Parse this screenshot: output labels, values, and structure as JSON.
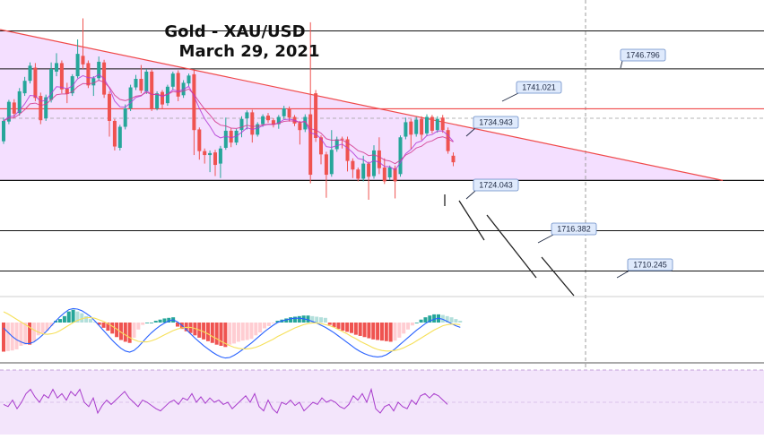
{
  "chart_data": {
    "type": "candlestick",
    "title": [
      "Gold - XAU/USD",
      "March 29, 2021"
    ],
    "instrument": "XAU/USD",
    "levels": [
      {
        "label": "1746.796",
        "value": 1746.796
      },
      {
        "label": "1741.021",
        "value": 1741.021
      },
      {
        "label": "1734.943",
        "value": 1734.943
      },
      {
        "label": "1724.043",
        "value": 1724.043
      },
      {
        "label": "1716.382",
        "value": 1716.382
      },
      {
        "label": "1710.245",
        "value": 1710.245
      }
    ],
    "price_range": [
      1706.5,
      1751.5
    ],
    "candles": [
      [
        1730.0,
        1733.1,
        1729.6,
        1733.6
      ],
      [
        1733.0,
        1736.0,
        1732.6,
        1736.3
      ],
      [
        1735.9,
        1734.2,
        1733.6,
        1736.4
      ],
      [
        1734.3,
        1737.6,
        1733.9,
        1738.1
      ],
      [
        1737.3,
        1739.2,
        1736.9,
        1739.8
      ],
      [
        1739.2,
        1741.5,
        1738.8,
        1742.0
      ],
      [
        1741.2,
        1736.6,
        1736.1,
        1741.9
      ],
      [
        1736.9,
        1733.2,
        1732.6,
        1737.4
      ],
      [
        1733.5,
        1736.7,
        1733.1,
        1737.1
      ],
      [
        1736.3,
        1741.0,
        1735.9,
        1742.0
      ],
      [
        1740.6,
        1741.9,
        1739.9,
        1743.4
      ],
      [
        1741.9,
        1737.9,
        1737.3,
        1742.3
      ],
      [
        1738.0,
        1737.2,
        1735.8,
        1738.9
      ],
      [
        1737.3,
        1739.9,
        1736.9,
        1740.2
      ],
      [
        1739.9,
        1743.3,
        1739.6,
        1745.5
      ],
      [
        1743.0,
        1741.7,
        1741.0,
        1748.7
      ],
      [
        1741.9,
        1738.5,
        1738.1,
        1742.3
      ],
      [
        1738.5,
        1739.6,
        1736.9,
        1739.9
      ],
      [
        1739.6,
        1742.1,
        1739.2,
        1742.9
      ],
      [
        1742.0,
        1737.1,
        1736.6,
        1742.4
      ],
      [
        1737.2,
        1733.1,
        1730.7,
        1737.6
      ],
      [
        1733.1,
        1729.2,
        1728.6,
        1733.4
      ],
      [
        1729.0,
        1732.2,
        1728.6,
        1732.5
      ],
      [
        1732.2,
        1735.0,
        1731.8,
        1735.6
      ],
      [
        1735.0,
        1738.2,
        1734.6,
        1738.6
      ],
      [
        1738.2,
        1739.5,
        1737.8,
        1740.1
      ],
      [
        1739.5,
        1737.7,
        1737.3,
        1741.6
      ],
      [
        1737.6,
        1740.6,
        1737.2,
        1741.0
      ],
      [
        1740.6,
        1735.0,
        1734.6,
        1741.0
      ],
      [
        1735.0,
        1737.3,
        1734.7,
        1737.6
      ],
      [
        1737.5,
        1735.6,
        1735.0,
        1737.8
      ],
      [
        1735.8,
        1738.3,
        1735.4,
        1738.6
      ],
      [
        1738.3,
        1740.3,
        1737.9,
        1740.6
      ],
      [
        1740.4,
        1736.8,
        1736.1,
        1740.8
      ],
      [
        1737.0,
        1738.9,
        1736.6,
        1739.3
      ],
      [
        1738.8,
        1740.0,
        1738.4,
        1740.3
      ],
      [
        1740.2,
        1731.7,
        1727.9,
        1740.8
      ],
      [
        1731.8,
        1728.5,
        1727.2,
        1732.1
      ],
      [
        1728.5,
        1727.9,
        1726.6,
        1728.9
      ],
      [
        1727.9,
        1728.2,
        1725.3,
        1728.6
      ],
      [
        1728.3,
        1726.4,
        1724.7,
        1728.7
      ],
      [
        1726.6,
        1728.9,
        1724.4,
        1729.3
      ],
      [
        1729.0,
        1731.6,
        1728.7,
        1733.6
      ],
      [
        1731.6,
        1729.8,
        1729.1,
        1732.0
      ],
      [
        1729.8,
        1731.6,
        1729.4,
        1731.9
      ],
      [
        1731.7,
        1733.4,
        1730.6,
        1733.8
      ],
      [
        1733.5,
        1734.4,
        1731.8,
        1734.7
      ],
      [
        1734.4,
        1731.0,
        1729.8,
        1734.8
      ],
      [
        1731.0,
        1732.6,
        1730.7,
        1732.9
      ],
      [
        1732.6,
        1733.8,
        1732.2,
        1734.1
      ],
      [
        1733.9,
        1733.2,
        1732.8,
        1734.3
      ],
      [
        1733.2,
        1732.5,
        1732.1,
        1733.5
      ],
      [
        1732.6,
        1733.7,
        1731.9,
        1734.0
      ],
      [
        1733.8,
        1735.0,
        1733.4,
        1735.4
      ],
      [
        1735.0,
        1733.6,
        1733.0,
        1735.3
      ],
      [
        1733.7,
        1732.7,
        1732.3,
        1734.0
      ],
      [
        1732.8,
        1731.7,
        1729.5,
        1733.1
      ],
      [
        1731.8,
        1733.7,
        1731.4,
        1734.1
      ],
      [
        1734.1,
        1724.9,
        1723.6,
        1748.1
      ],
      [
        1737.3,
        1730.5,
        1729.9,
        1737.8
      ],
      [
        1730.6,
        1728.0,
        1726.5,
        1730.9
      ],
      [
        1728.0,
        1724.9,
        1721.4,
        1728.4
      ],
      [
        1725.0,
        1728.7,
        1724.6,
        1731.7
      ],
      [
        1728.8,
        1730.3,
        1728.4,
        1730.7
      ],
      [
        1730.4,
        1730.3,
        1728.9,
        1730.7
      ],
      [
        1730.3,
        1727.0,
        1725.4,
        1730.7
      ],
      [
        1727.0,
        1725.7,
        1724.4,
        1727.4
      ],
      [
        1725.7,
        1724.3,
        1723.9,
        1726.0
      ],
      [
        1724.3,
        1726.6,
        1723.9,
        1727.8
      ],
      [
        1726.6,
        1724.6,
        1721.1,
        1726.9
      ],
      [
        1724.7,
        1728.6,
        1724.3,
        1729.4
      ],
      [
        1728.6,
        1725.9,
        1725.0,
        1730.6
      ],
      [
        1726.0,
        1723.9,
        1723.5,
        1727.4
      ],
      [
        1724.5,
        1726.0,
        1724.1,
        1726.3
      ],
      [
        1725.9,
        1723.9,
        1721.3,
        1726.3
      ],
      [
        1725.0,
        1730.6,
        1724.6,
        1730.9
      ],
      [
        1730.7,
        1732.9,
        1730.3,
        1733.6
      ],
      [
        1733.0,
        1731.0,
        1728.8,
        1733.4
      ],
      [
        1731.1,
        1733.3,
        1730.7,
        1733.7
      ],
      [
        1733.4,
        1731.0,
        1730.2,
        1733.8
      ],
      [
        1731.2,
        1733.7,
        1730.8,
        1734.1
      ],
      [
        1733.7,
        1731.6,
        1731.2,
        1734.0
      ],
      [
        1731.7,
        1733.4,
        1731.3,
        1733.8
      ],
      [
        1733.6,
        1731.7,
        1731.3,
        1734.0
      ],
      [
        1731.7,
        1728.5,
        1728.1,
        1732.1
      ],
      [
        1727.8,
        1726.8,
        1726.2,
        1728.3
      ]
    ],
    "macd": {
      "histogram": [
        -5.0,
        -4.9,
        -4.8,
        -4.6,
        -4.0,
        -3.8,
        -3.8,
        -3.2,
        -2.2,
        -1.8,
        -1.4,
        -0.6,
        0.3,
        0.6,
        1.1,
        1.9,
        2.2,
        1.9,
        1.6,
        1.1,
        0.6,
        0.1,
        -0.4,
        -0.9,
        -1.4,
        -1.9,
        -2.5,
        -3.0,
        -3.3,
        -3.5,
        -2.6,
        -1.2,
        -0.4,
        0.0,
        0.0,
        0.3,
        0.5,
        0.7,
        0.8,
        0.9,
        -0.7,
        -1.1,
        -1.5,
        -1.8,
        -2.2,
        -2.6,
        -2.9,
        -3.2,
        -3.5,
        -3.8,
        -4.0,
        -4.2,
        -3.8,
        -3.6,
        -3.3,
        -3.1,
        -3.0,
        -2.8,
        -2.2,
        -1.7,
        -1.0,
        -0.6,
        -0.1,
        0.3,
        0.5,
        0.7,
        0.9,
        1.0,
        1.1,
        1.2,
        1.2,
        1.1,
        1.0,
        0.9,
        0.8,
        -0.4,
        -0.8,
        -1.1,
        -1.4,
        -1.6,
        -1.8,
        -2.1,
        -2.3,
        -2.5,
        -2.7,
        -2.9,
        -3.0,
        -3.1,
        -3.2,
        -3.3,
        -3.1,
        -2.6,
        -1.9,
        -1.2,
        -0.5,
        0.0,
        0.5,
        0.9,
        1.2,
        1.4,
        1.4,
        1.3,
        1.1,
        0.9,
        0.6,
        0.3
      ],
      "macd_line": [
        -1.0,
        -1.8,
        -2.6,
        -3.2,
        -3.6,
        -3.9,
        -3.9,
        -3.6,
        -3.0,
        -2.3,
        -1.5,
        -0.6,
        0.3,
        1.1,
        1.8,
        2.4,
        2.6,
        2.5,
        2.2,
        1.7,
        1.1,
        0.3,
        -0.6,
        -1.5,
        -2.4,
        -3.3,
        -4.1,
        -4.8,
        -5.3,
        -5.5,
        -5.2,
        -4.5,
        -3.6,
        -2.7,
        -1.9,
        -1.2,
        -0.6,
        -0.1,
        0.3,
        0.5,
        0.1,
        -0.5,
        -1.3,
        -2.1,
        -2.9,
        -3.6,
        -4.3,
        -4.9,
        -5.5,
        -6.0,
        -6.4,
        -6.6,
        -6.5,
        -6.1,
        -5.6,
        -5.0,
        -4.4,
        -3.8,
        -3.1,
        -2.4,
        -1.7,
        -1.1,
        -0.5,
        0.0,
        0.3,
        0.5,
        0.7,
        0.8,
        0.8,
        0.7,
        0.5,
        0.2,
        -0.1,
        -0.5,
        -0.9,
        -1.4,
        -1.9,
        -2.5,
        -3.1,
        -3.7,
        -4.3,
        -4.9,
        -5.4,
        -5.8,
        -6.1,
        -6.3,
        -6.4,
        -6.3,
        -6.0,
        -5.5,
        -4.9,
        -4.2,
        -3.5,
        -2.8,
        -2.1,
        -1.4,
        -0.8,
        -0.2,
        0.3,
        0.6,
        0.8,
        0.6,
        0.2,
        -0.2,
        -0.6,
        -0.9
      ],
      "signal_line": [
        2.0,
        1.6,
        1.1,
        0.6,
        0.1,
        -0.4,
        -0.9,
        -1.4,
        -1.8,
        -2.1,
        -2.2,
        -2.1,
        -1.9,
        -1.5,
        -1.0,
        -0.5,
        0.0,
        0.4,
        0.7,
        0.9,
        0.9,
        0.8,
        0.5,
        0.2,
        -0.2,
        -0.7,
        -1.2,
        -1.8,
        -2.3,
        -2.8,
        -3.2,
        -3.5,
        -3.6,
        -3.6,
        -3.4,
        -3.1,
        -2.7,
        -2.3,
        -1.9,
        -1.5,
        -1.2,
        -1.0,
        -0.9,
        -0.9,
        -1.1,
        -1.4,
        -1.7,
        -2.1,
        -2.6,
        -3.0,
        -3.5,
        -3.9,
        -4.3,
        -4.6,
        -4.8,
        -4.9,
        -4.9,
        -4.8,
        -4.6,
        -4.3,
        -3.9,
        -3.5,
        -3.1,
        -2.6,
        -2.2,
        -1.8,
        -1.4,
        -1.0,
        -0.7,
        -0.4,
        -0.2,
        -0.1,
        -0.1,
        -0.2,
        -0.4,
        -0.6,
        -0.9,
        -1.3,
        -1.7,
        -2.1,
        -2.6,
        -3.0,
        -3.5,
        -3.9,
        -4.3,
        -4.7,
        -5.0,
        -5.2,
        -5.3,
        -5.3,
        -5.2,
        -5.0,
        -4.7,
        -4.3,
        -3.9,
        -3.4,
        -2.9,
        -2.4,
        -1.9,
        -1.4,
        -1.0,
        -0.6,
        -0.4,
        -0.3,
        -0.3,
        -0.4
      ]
    },
    "rsi": [
      48,
      46,
      52,
      44,
      50,
      58,
      62,
      55,
      50,
      57,
      54,
      62,
      54,
      58,
      52,
      60,
      56,
      62,
      50,
      46,
      54,
      40,
      47,
      52,
      48,
      52,
      56,
      60,
      54,
      50,
      46,
      52,
      50,
      47,
      44,
      42,
      46,
      50,
      52,
      48,
      54,
      52,
      58,
      50,
      55,
      49,
      54,
      50,
      52,
      48,
      50,
      44,
      48,
      52,
      56,
      50,
      58,
      46,
      42,
      52,
      44,
      40,
      50,
      48,
      52,
      47,
      50,
      42,
      46,
      50,
      48,
      54,
      50,
      52,
      50,
      46,
      44,
      48,
      56,
      52,
      58,
      50,
      62,
      44,
      40,
      46,
      48,
      42,
      50,
      46,
      44,
      52,
      48,
      56,
      58,
      54,
      58,
      56,
      52,
      48
    ],
    "colors": {
      "bull": "#26a69a",
      "bear": "#ef5350",
      "wedge_fill": "#f3dcff",
      "trendline": "#f04a4a",
      "ema": "#a000c8",
      "macd_line": "#2962ff",
      "signal_line": "#f6e05a",
      "rsi_line": "#a83bcc",
      "rsi_fill": "#f3e5fb"
    }
  }
}
